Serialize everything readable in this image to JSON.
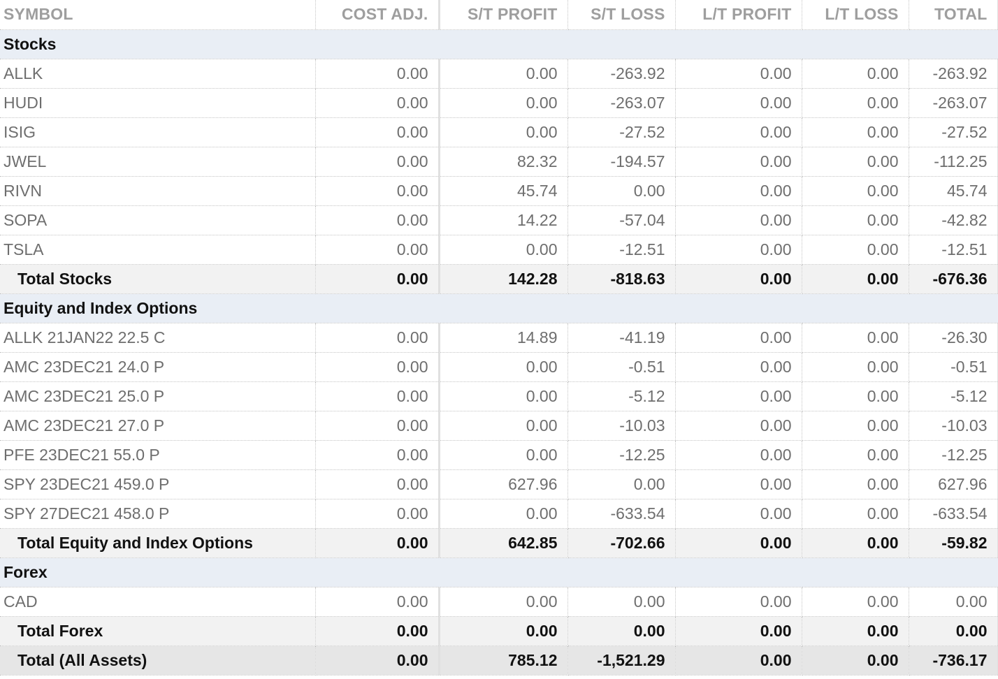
{
  "columns": [
    "SYMBOL",
    "COST ADJ.",
    "S/T PROFIT",
    "S/T LOSS",
    "L/T PROFIT",
    "L/T LOSS",
    "TOTAL"
  ],
  "sections": [
    {
      "title": "Stocks",
      "rows": [
        {
          "symbol": "ALLK",
          "cost_adj": "0.00",
          "st_profit": "0.00",
          "st_loss": "-263.92",
          "lt_profit": "0.00",
          "lt_loss": "0.00",
          "total": "-263.92"
        },
        {
          "symbol": "HUDI",
          "cost_adj": "0.00",
          "st_profit": "0.00",
          "st_loss": "-263.07",
          "lt_profit": "0.00",
          "lt_loss": "0.00",
          "total": "-263.07"
        },
        {
          "symbol": "ISIG",
          "cost_adj": "0.00",
          "st_profit": "0.00",
          "st_loss": "-27.52",
          "lt_profit": "0.00",
          "lt_loss": "0.00",
          "total": "-27.52"
        },
        {
          "symbol": "JWEL",
          "cost_adj": "0.00",
          "st_profit": "82.32",
          "st_loss": "-194.57",
          "lt_profit": "0.00",
          "lt_loss": "0.00",
          "total": "-112.25"
        },
        {
          "symbol": "RIVN",
          "cost_adj": "0.00",
          "st_profit": "45.74",
          "st_loss": "0.00",
          "lt_profit": "0.00",
          "lt_loss": "0.00",
          "total": "45.74"
        },
        {
          "symbol": "SOPA",
          "cost_adj": "0.00",
          "st_profit": "14.22",
          "st_loss": "-57.04",
          "lt_profit": "0.00",
          "lt_loss": "0.00",
          "total": "-42.82"
        },
        {
          "symbol": "TSLA",
          "cost_adj": "0.00",
          "st_profit": "0.00",
          "st_loss": "-12.51",
          "lt_profit": "0.00",
          "lt_loss": "0.00",
          "total": "-12.51"
        }
      ],
      "total": {
        "label": "Total Stocks",
        "cost_adj": "0.00",
        "st_profit": "142.28",
        "st_loss": "-818.63",
        "lt_profit": "0.00",
        "lt_loss": "0.00",
        "total": "-676.36"
      }
    },
    {
      "title": "Equity and Index Options",
      "rows": [
        {
          "symbol": "ALLK 21JAN22 22.5 C",
          "cost_adj": "0.00",
          "st_profit": "14.89",
          "st_loss": "-41.19",
          "lt_profit": "0.00",
          "lt_loss": "0.00",
          "total": "-26.30"
        },
        {
          "symbol": "AMC 23DEC21 24.0 P",
          "cost_adj": "0.00",
          "st_profit": "0.00",
          "st_loss": "-0.51",
          "lt_profit": "0.00",
          "lt_loss": "0.00",
          "total": "-0.51"
        },
        {
          "symbol": "AMC 23DEC21 25.0 P",
          "cost_adj": "0.00",
          "st_profit": "0.00",
          "st_loss": "-5.12",
          "lt_profit": "0.00",
          "lt_loss": "0.00",
          "total": "-5.12"
        },
        {
          "symbol": "AMC 23DEC21 27.0 P",
          "cost_adj": "0.00",
          "st_profit": "0.00",
          "st_loss": "-10.03",
          "lt_profit": "0.00",
          "lt_loss": "0.00",
          "total": "-10.03"
        },
        {
          "symbol": "PFE 23DEC21 55.0 P",
          "cost_adj": "0.00",
          "st_profit": "0.00",
          "st_loss": "-12.25",
          "lt_profit": "0.00",
          "lt_loss": "0.00",
          "total": "-12.25"
        },
        {
          "symbol": "SPY 23DEC21 459.0 P",
          "cost_adj": "0.00",
          "st_profit": "627.96",
          "st_loss": "0.00",
          "lt_profit": "0.00",
          "lt_loss": "0.00",
          "total": "627.96"
        },
        {
          "symbol": "SPY 27DEC21 458.0 P",
          "cost_adj": "0.00",
          "st_profit": "0.00",
          "st_loss": "-633.54",
          "lt_profit": "0.00",
          "lt_loss": "0.00",
          "total": "-633.54"
        }
      ],
      "total": {
        "label": "Total Equity and Index Options",
        "cost_adj": "0.00",
        "st_profit": "642.85",
        "st_loss": "-702.66",
        "lt_profit": "0.00",
        "lt_loss": "0.00",
        "total": "-59.82"
      }
    },
    {
      "title": "Forex",
      "rows": [
        {
          "symbol": "CAD",
          "cost_adj": "0.00",
          "st_profit": "0.00",
          "st_loss": "0.00",
          "lt_profit": "0.00",
          "lt_loss": "0.00",
          "total": "0.00"
        }
      ],
      "total": {
        "label": "Total Forex",
        "cost_adj": "0.00",
        "st_profit": "0.00",
        "st_loss": "0.00",
        "lt_profit": "0.00",
        "lt_loss": "0.00",
        "total": "0.00"
      }
    }
  ],
  "grand_total": {
    "label": "Total (All Assets)",
    "cost_adj": "0.00",
    "st_profit": "785.12",
    "st_loss": "-1,521.29",
    "lt_profit": "0.00",
    "lt_loss": "0.00",
    "total": "-736.17"
  }
}
